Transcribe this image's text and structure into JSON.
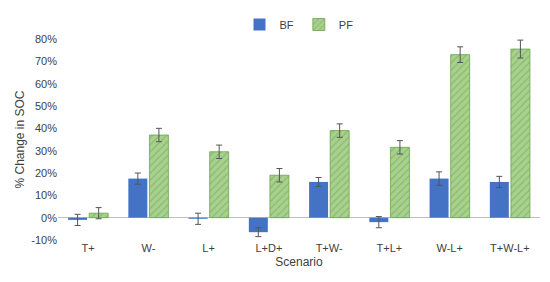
{
  "chart_data": {
    "type": "bar",
    "categories": [
      "T+",
      "W-",
      "L+",
      "L+D+",
      "T+W-",
      "T+L+",
      "W-L+",
      "T+W-L+"
    ],
    "x_label": "Scenario",
    "y_label": "% Change in SOC",
    "series": [
      {
        "name": "BF",
        "color": "#4472C4",
        "marker": "solid",
        "values": [
          -1,
          17.5,
          -0.5,
          -6.5,
          16,
          -2,
          17.5,
          16
        ],
        "errors": [
          2.5,
          2.5,
          2.5,
          2,
          2,
          2.5,
          3,
          2.5
        ]
      },
      {
        "name": "PF",
        "color": "#A9D18E",
        "marker": "hatch",
        "values": [
          2,
          37,
          29.5,
          19,
          39,
          31.5,
          73,
          75.5
        ],
        "errors": [
          2.5,
          3,
          3,
          3,
          3,
          3,
          3.5,
          4
        ]
      }
    ],
    "ylim": [
      -10,
      80
    ],
    "yticks": [
      {
        "value": -10,
        "label": "-10%"
      },
      {
        "value": 0,
        "label": "0%"
      },
      {
        "value": 10,
        "label": "10%"
      },
      {
        "value": 20,
        "label": "20%"
      },
      {
        "value": 30,
        "label": "30%"
      },
      {
        "value": 40,
        "label": "40%"
      },
      {
        "value": 50,
        "label": "50%"
      },
      {
        "value": 60,
        "label": "60%"
      },
      {
        "value": 70,
        "label": "70%"
      },
      {
        "value": 80,
        "label": "80%"
      }
    ],
    "grid": false,
    "legend": "top"
  }
}
